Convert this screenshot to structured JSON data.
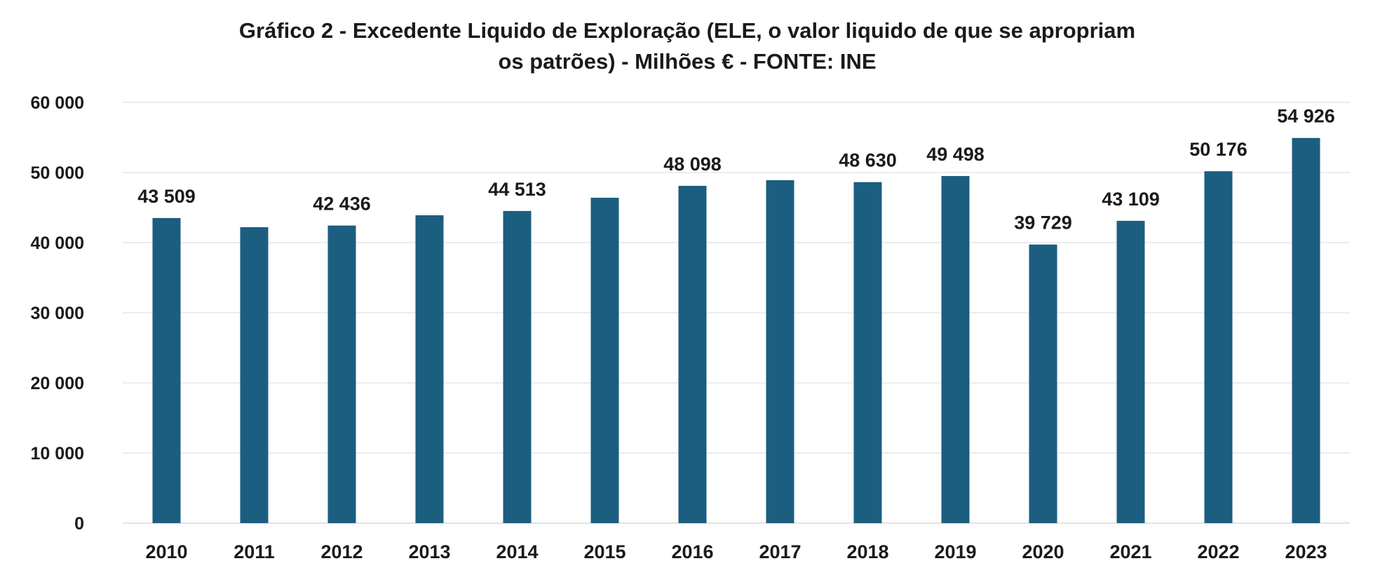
{
  "chart_data": {
    "type": "bar",
    "title": "Gráfico 2 - Excedente Liquido de Exploração (ELE, o valor liquido de que se apropriam",
    "subtitle": "os patrões)  - Milhões € - FONTE: INE",
    "categories": [
      "2010",
      "2011",
      "2012",
      "2013",
      "2014",
      "2015",
      "2016",
      "2017",
      "2018",
      "2019",
      "2020",
      "2021",
      "2022",
      "2023"
    ],
    "values": [
      43509,
      42200,
      42436,
      43900,
      44513,
      46400,
      48098,
      48900,
      48630,
      49498,
      39729,
      43109,
      50176,
      54926
    ],
    "data_labels": [
      "43 509",
      "",
      "42 436",
      "",
      "44 513",
      "",
      "48 098",
      "",
      "48 630",
      "49 498",
      "39 729",
      "43 109",
      "50 176",
      "54 926"
    ],
    "ylim": [
      0,
      60000
    ],
    "yticks": [
      0,
      10000,
      20000,
      30000,
      40000,
      50000,
      60000
    ],
    "ytick_labels": [
      "0",
      "10 000",
      "20 000",
      "30 000",
      "40 000",
      "50 000",
      "60 000"
    ],
    "xlabel": "",
    "ylabel": "",
    "grid": true,
    "bar_color": "#1b5e80",
    "grid_color": "#d9d9d9"
  }
}
